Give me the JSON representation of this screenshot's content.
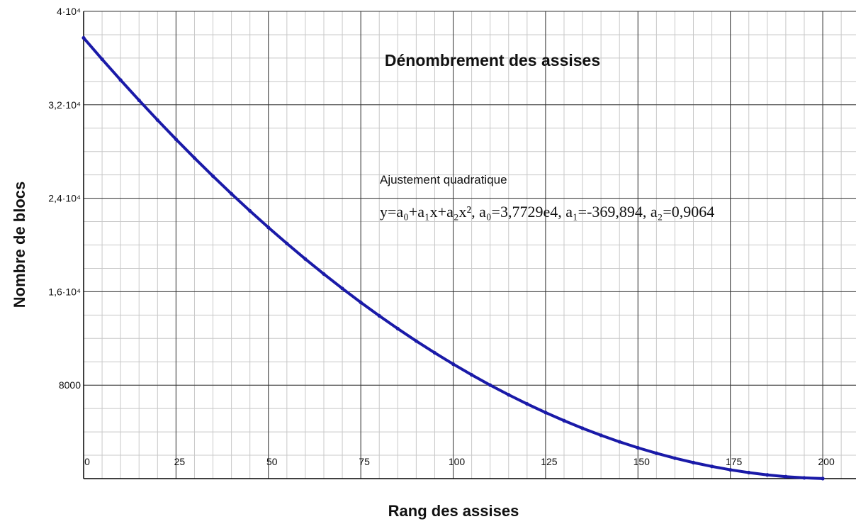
{
  "chart_data": {
    "type": "line",
    "title": "Dénombrement des assises",
    "xlabel": "Rang des assises",
    "ylabel": "Nombre de blocs",
    "annotations": [
      "Ajustement quadratique",
      "y=a₀+a₁x+a₂x², a₀=3,7729e4, a₁=-369,894, a₂=0,9064"
    ],
    "x": [
      0,
      5,
      10,
      15,
      20,
      25,
      30,
      35,
      40,
      45,
      50,
      55,
      60,
      65,
      70,
      75,
      80,
      85,
      90,
      95,
      100,
      105,
      110,
      115,
      120,
      125,
      130,
      135,
      140,
      145,
      150,
      155,
      160,
      165,
      170,
      175,
      180,
      185,
      190,
      195,
      200
    ],
    "series": [
      {
        "name": "Nombre de blocs",
        "color": "#1a1aa8",
        "values": [
          37729,
          35902,
          34121,
          32385,
          30694,
          29048,
          27448,
          25893,
          24383,
          22919,
          21500,
          20127,
          18798,
          17515,
          16278,
          15085,
          13938,
          12837,
          11780,
          10769,
          9804,
          8883,
          8008,
          7178,
          6394,
          5655,
          4961,
          4312,
          3709,
          3151,
          2639,
          2172,
          1750,
          1373,
          1042,
          756,
          515,
          320,
          170,
          65,
          6
        ]
      }
    ],
    "xlim": [
      0,
      209
    ],
    "ylim": [
      0,
      40000
    ],
    "xticks": [
      0,
      25,
      50,
      75,
      100,
      125,
      150,
      175,
      200
    ],
    "yticks": [
      8000,
      {
        "value": 16000,
        "label": "1,6·10⁴"
      },
      {
        "value": 24000,
        "label": "2,4·10⁴"
      },
      {
        "value": 32000,
        "label": "3,2·10⁴"
      },
      {
        "value": 40000,
        "label": "4·10⁴"
      }
    ],
    "grid": true
  }
}
